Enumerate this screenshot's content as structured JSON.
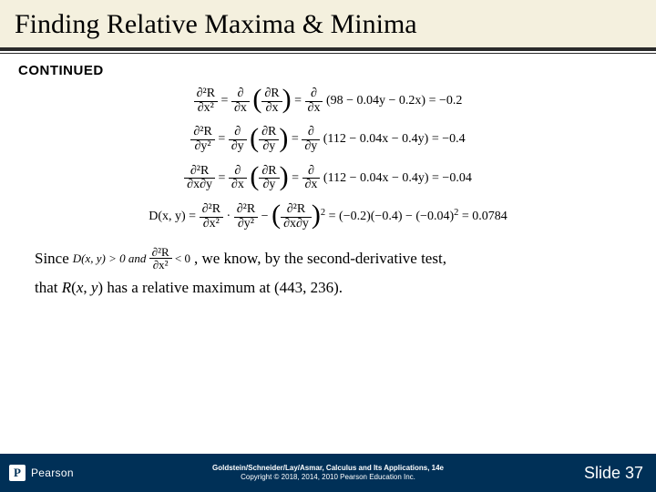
{
  "title": "Finding Relative Maxima & Minima",
  "continued": "CONTINUED",
  "eq1": {
    "lhs_n": "∂²R",
    "lhs_d": "∂x²",
    "mid1_n": "∂",
    "mid1_d": "∂x",
    "mid2_n": "∂R",
    "mid2_d": "∂x",
    "mid3_n": "∂",
    "mid3_d": "∂x",
    "inner": "(98 − 0.04y − 0.2x)",
    "result": " = −0.2"
  },
  "eq2": {
    "lhs_n": "∂²R",
    "lhs_d": "∂y²",
    "mid1_n": "∂",
    "mid1_d": "∂y",
    "mid2_n": "∂R",
    "mid2_d": "∂y",
    "mid3_n": "∂",
    "mid3_d": "∂y",
    "inner": "(112 − 0.04x − 0.4y)",
    "result": " = −0.4"
  },
  "eq3": {
    "lhs_n": "∂²R",
    "lhs_d": "∂x∂y",
    "mid1_n": "∂",
    "mid1_d": "∂x",
    "mid2_n": "∂R",
    "mid2_d": "∂y",
    "mid3_n": "∂",
    "mid3_d": "∂x",
    "inner": "(112 − 0.04x − 0.4y)",
    "result": " = −0.04"
  },
  "eqD": {
    "lhs": "D(x, y) = ",
    "f1_n": "∂²R",
    "f1_d": "∂x²",
    "dot": " · ",
    "f2_n": "∂²R",
    "f2_d": "∂y²",
    "minus": " − ",
    "f3_n": "∂²R",
    "f3_d": "∂x∂y",
    "tail": " = (−0.2)(−0.4) − (−0.04)",
    "sq": "2",
    "result": " = 0.0784"
  },
  "since": {
    "since": "Since ",
    "d_ineq": "D(x, y) > 0 and ",
    "f_n": "∂²R",
    "f_d": "∂x²",
    "f_ineq": " < 0",
    "tail": " , we know, by the second-derivative test,"
  },
  "conclusion": {
    "pre": "that ",
    "R": "R",
    "args": "(x, y)",
    "post": " has a relative maximum at (443, 236)."
  },
  "footer": {
    "logo_letter": "P",
    "logo_text": "Pearson",
    "copyright_line1": "Goldstein/Schneider/Lay/Asmar, Calculus and Its Applications, 14e",
    "copyright_line2": "Copyright © 2018, 2014, 2010 Pearson Education Inc.",
    "slide": "Slide 37"
  },
  "colors": {
    "title_bg": "#f4f0de",
    "rule": "#2a2a2a",
    "footer_bg": "#003057",
    "footer_text": "#ffffff"
  }
}
